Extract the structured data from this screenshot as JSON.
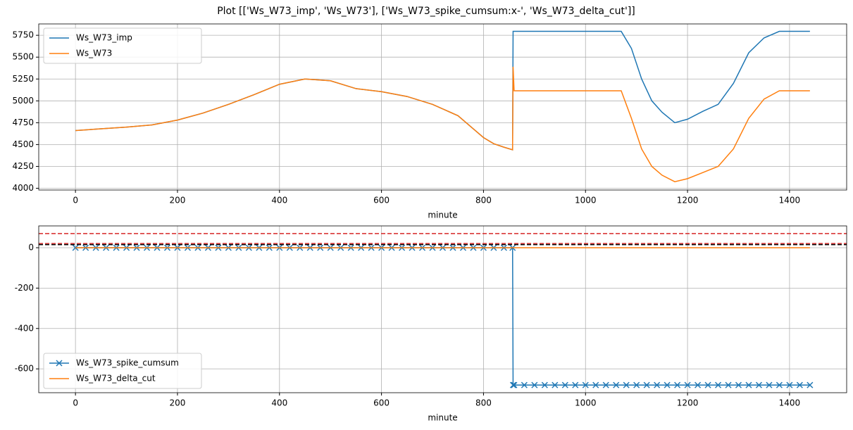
{
  "title": "Plot [['Ws_W73_imp', 'Ws_W73'], ['Ws_W73_spike_cumsum:x-', 'Ws_W73_delta_cut']]",
  "chart_data": [
    {
      "type": "line",
      "x_label": "minute",
      "grid": true,
      "legend": "upper left",
      "xlim": [
        -72,
        1512
      ],
      "xticks": [
        0,
        200,
        400,
        600,
        800,
        1000,
        1200,
        1400
      ],
      "ylim": [
        3980,
        5880
      ],
      "yticks": [
        4000,
        4250,
        4500,
        4750,
        5000,
        5250,
        5500,
        5750
      ],
      "x": [
        0,
        50,
        100,
        150,
        200,
        250,
        300,
        350,
        400,
        450,
        500,
        550,
        600,
        650,
        700,
        750,
        780,
        800,
        820,
        840,
        857,
        858,
        860,
        900,
        1000,
        1070,
        1090,
        1110,
        1130,
        1150,
        1175,
        1200,
        1230,
        1260,
        1290,
        1320,
        1350,
        1380,
        1440
      ],
      "series": [
        {
          "name": "Ws_W73_imp",
          "color": "#1f77b4",
          "values": [
            4660,
            4680,
            4700,
            4725,
            4780,
            4860,
            4960,
            5070,
            5190,
            5250,
            5230,
            5140,
            5105,
            5050,
            4960,
            4830,
            4680,
            4580,
            4510,
            4470,
            4440,
            5795,
            5795,
            5795,
            5795,
            5795,
            5600,
            5250,
            5000,
            4870,
            4750,
            4790,
            4880,
            4960,
            5200,
            5550,
            5720,
            5795,
            5795
          ]
        },
        {
          "name": "Ws_W73",
          "color": "#ff7f0e",
          "values": [
            4660,
            4680,
            4700,
            4725,
            4780,
            4860,
            4960,
            5070,
            5190,
            5250,
            5230,
            5140,
            5105,
            5050,
            4960,
            4830,
            4680,
            4580,
            4510,
            4470,
            4440,
            5390,
            5115,
            5115,
            5115,
            5115,
            4800,
            4450,
            4250,
            4150,
            4075,
            4110,
            4180,
            4250,
            4450,
            4800,
            5020,
            5115,
            5115
          ]
        }
      ]
    },
    {
      "type": "line",
      "x_label": "minute",
      "grid": true,
      "legend": "lower left",
      "xlim": [
        -72,
        1512
      ],
      "xticks": [
        0,
        200,
        400,
        600,
        800,
        1000,
        1200,
        1400
      ],
      "ylim": [
        -718,
        108
      ],
      "yticks": [
        -600,
        -400,
        -200,
        0
      ],
      "hlines": [
        {
          "value": 70,
          "color": "#d62728"
        },
        {
          "value": 21,
          "color": "#d62728"
        },
        {
          "value": 15,
          "color": "#000000"
        }
      ],
      "x": [
        0,
        20,
        40,
        60,
        80,
        100,
        120,
        140,
        160,
        180,
        200,
        220,
        240,
        260,
        280,
        300,
        320,
        340,
        360,
        380,
        400,
        420,
        440,
        460,
        480,
        500,
        520,
        540,
        560,
        580,
        600,
        620,
        640,
        660,
        680,
        700,
        720,
        740,
        760,
        780,
        800,
        820,
        840,
        857,
        858,
        860,
        880,
        900,
        920,
        940,
        960,
        980,
        1000,
        1020,
        1040,
        1060,
        1080,
        1100,
        1120,
        1140,
        1160,
        1180,
        1200,
        1220,
        1240,
        1260,
        1280,
        1300,
        1320,
        1340,
        1360,
        1380,
        1400,
        1420,
        1440
      ],
      "series": [
        {
          "name": "Ws_W73_spike_cumsum",
          "color": "#1f77b4",
          "marker": "x",
          "values": [
            0,
            0,
            0,
            0,
            0,
            0,
            0,
            0,
            0,
            0,
            0,
            0,
            0,
            0,
            0,
            0,
            0,
            0,
            0,
            0,
            0,
            0,
            0,
            0,
            0,
            0,
            0,
            0,
            0,
            0,
            0,
            0,
            0,
            0,
            0,
            0,
            0,
            0,
            0,
            0,
            0,
            0,
            0,
            0,
            -680,
            -680,
            -680,
            -680,
            -680,
            -680,
            -680,
            -680,
            -680,
            -680,
            -680,
            -680,
            -680,
            -680,
            -680,
            -680,
            -680,
            -680,
            -680,
            -680,
            -680,
            -680,
            -680,
            -680,
            -680,
            -680,
            -680,
            -680,
            -680,
            -680,
            -680
          ]
        },
        {
          "name": "Ws_W73_delta_cut",
          "color": "#ff7f0e",
          "x": [
            0,
            1440
          ],
          "values": [
            0,
            0
          ]
        }
      ]
    }
  ]
}
